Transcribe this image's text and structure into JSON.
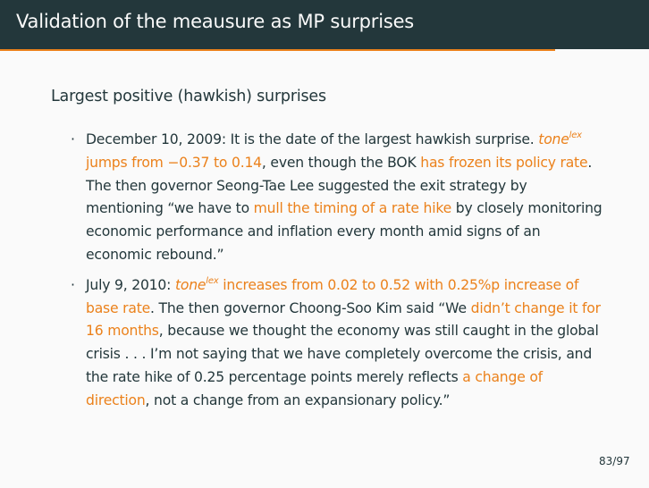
{
  "slide": {
    "title": "Validation of the meausure as MP surprises",
    "block_title": "Largest positive (hawkish) surprises",
    "bullet_symbol": "·",
    "items": [
      {
        "p1": "December 10, 2009: It is the date of the largest hawkish surprise. ",
        "tone": "tone",
        "lex": "lex",
        "p2": " jumps from −0.37 to 0.14",
        "p3": ", even though the BOK ",
        "p4": "has frozen its policy rate",
        "p5": ". The then governor Seong-Tae Lee suggested the exit strategy by mentioning “we have to ",
        "p6": "mull the timing of a rate hike",
        "p7": " by closely monitoring economic performance and inflation every month amid signs of an economic rebound.”"
      },
      {
        "p1": "July 9, 2010: ",
        "tone": "tone",
        "lex": "lex",
        "p2": " increases from 0.02 to 0.52 with 0.25%p increase of base rate",
        "p3": ". The then governor Choong-Soo Kim said “We ",
        "p4": "didn’t change it for 16 months",
        "p5": ", because we thought the economy was still caught in the global crisis . . . I’m not saying that we have completely overcome the crisis, and the rate hike of 0.25 percentage points merely reflects ",
        "p6": "a change of direction",
        "p7": ", not a change from an expansionary policy.”"
      }
    ],
    "page_number": "83/97"
  }
}
